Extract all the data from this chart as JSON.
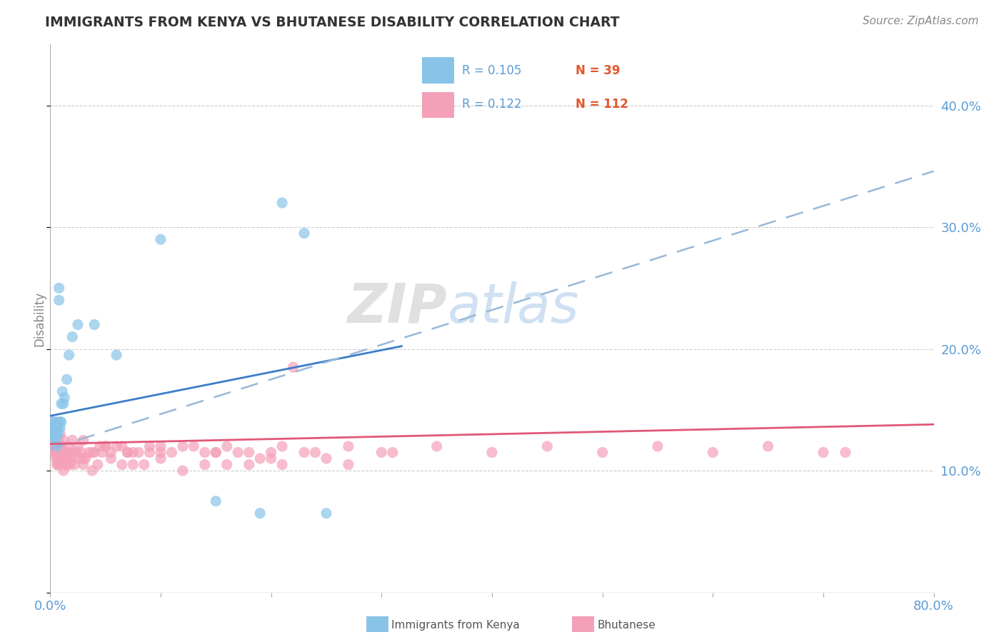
{
  "title": "IMMIGRANTS FROM KENYA VS BHUTANESE DISABILITY CORRELATION CHART",
  "source": "Source: ZipAtlas.com",
  "ylabel": "Disability",
  "xlim": [
    0.0,
    0.8
  ],
  "ylim": [
    0.0,
    0.45
  ],
  "legend1_R": 0.105,
  "legend1_N": 39,
  "legend2_R": 0.122,
  "legend2_N": 112,
  "blue_scatter_color": "#89C4E8",
  "pink_scatter_color": "#F4A0B8",
  "blue_line_color": "#3A7DC9",
  "pink_line_color": "#E05878",
  "dash_line_color": "#98B8D8",
  "tick_color": "#5B9BD5",
  "watermark_text": "ZIPatlas",
  "kenya_x": [
    0.001,
    0.002,
    0.002,
    0.003,
    0.003,
    0.003,
    0.004,
    0.004,
    0.005,
    0.005,
    0.005,
    0.005,
    0.006,
    0.006,
    0.006,
    0.007,
    0.007,
    0.007,
    0.008,
    0.008,
    0.009,
    0.009,
    0.01,
    0.01,
    0.011,
    0.012,
    0.013,
    0.015,
    0.017,
    0.02,
    0.025,
    0.04,
    0.06,
    0.1,
    0.15,
    0.19,
    0.21,
    0.23,
    0.25
  ],
  "kenya_y": [
    0.135,
    0.13,
    0.14,
    0.135,
    0.13,
    0.125,
    0.13,
    0.135,
    0.135,
    0.13,
    0.125,
    0.14,
    0.13,
    0.135,
    0.12,
    0.14,
    0.135,
    0.13,
    0.24,
    0.25,
    0.14,
    0.135,
    0.155,
    0.14,
    0.165,
    0.155,
    0.16,
    0.175,
    0.195,
    0.21,
    0.22,
    0.22,
    0.195,
    0.29,
    0.075,
    0.065,
    0.32,
    0.295,
    0.065
  ],
  "bhu_x": [
    0.001,
    0.001,
    0.002,
    0.002,
    0.003,
    0.003,
    0.004,
    0.004,
    0.005,
    0.005,
    0.005,
    0.006,
    0.006,
    0.007,
    0.007,
    0.007,
    0.008,
    0.008,
    0.009,
    0.009,
    0.01,
    0.01,
    0.011,
    0.012,
    0.012,
    0.013,
    0.014,
    0.015,
    0.016,
    0.017,
    0.018,
    0.019,
    0.02,
    0.022,
    0.024,
    0.026,
    0.028,
    0.03,
    0.032,
    0.035,
    0.038,
    0.04,
    0.043,
    0.047,
    0.05,
    0.055,
    0.06,
    0.065,
    0.07,
    0.075,
    0.08,
    0.085,
    0.09,
    0.1,
    0.11,
    0.12,
    0.13,
    0.14,
    0.15,
    0.16,
    0.17,
    0.18,
    0.19,
    0.2,
    0.21,
    0.22,
    0.23,
    0.25,
    0.27,
    0.3,
    0.003,
    0.005,
    0.007,
    0.009,
    0.012,
    0.016,
    0.02,
    0.025,
    0.03,
    0.038,
    0.045,
    0.055,
    0.065,
    0.075,
    0.09,
    0.1,
    0.12,
    0.14,
    0.16,
    0.18,
    0.21,
    0.24,
    0.27,
    0.31,
    0.35,
    0.4,
    0.45,
    0.5,
    0.55,
    0.6,
    0.65,
    0.7,
    0.72,
    0.005,
    0.01,
    0.02,
    0.03,
    0.05,
    0.07,
    0.1,
    0.15,
    0.2
  ],
  "bhu_y": [
    0.13,
    0.125,
    0.13,
    0.12,
    0.125,
    0.12,
    0.13,
    0.115,
    0.12,
    0.115,
    0.11,
    0.115,
    0.105,
    0.12,
    0.11,
    0.105,
    0.12,
    0.11,
    0.115,
    0.105,
    0.12,
    0.115,
    0.11,
    0.115,
    0.1,
    0.11,
    0.105,
    0.115,
    0.105,
    0.11,
    0.105,
    0.11,
    0.115,
    0.105,
    0.115,
    0.11,
    0.115,
    0.105,
    0.11,
    0.115,
    0.1,
    0.115,
    0.105,
    0.115,
    0.12,
    0.11,
    0.12,
    0.105,
    0.115,
    0.105,
    0.115,
    0.105,
    0.115,
    0.12,
    0.115,
    0.1,
    0.12,
    0.105,
    0.115,
    0.105,
    0.115,
    0.105,
    0.11,
    0.115,
    0.105,
    0.185,
    0.115,
    0.11,
    0.105,
    0.115,
    0.14,
    0.13,
    0.125,
    0.13,
    0.125,
    0.12,
    0.125,
    0.12,
    0.125,
    0.115,
    0.12,
    0.115,
    0.12,
    0.115,
    0.12,
    0.115,
    0.12,
    0.115,
    0.12,
    0.115,
    0.12,
    0.115,
    0.12,
    0.115,
    0.12,
    0.115,
    0.12,
    0.115,
    0.12,
    0.115,
    0.12,
    0.115,
    0.115,
    0.125,
    0.12,
    0.115,
    0.11,
    0.12,
    0.115,
    0.11,
    0.115,
    0.11
  ]
}
